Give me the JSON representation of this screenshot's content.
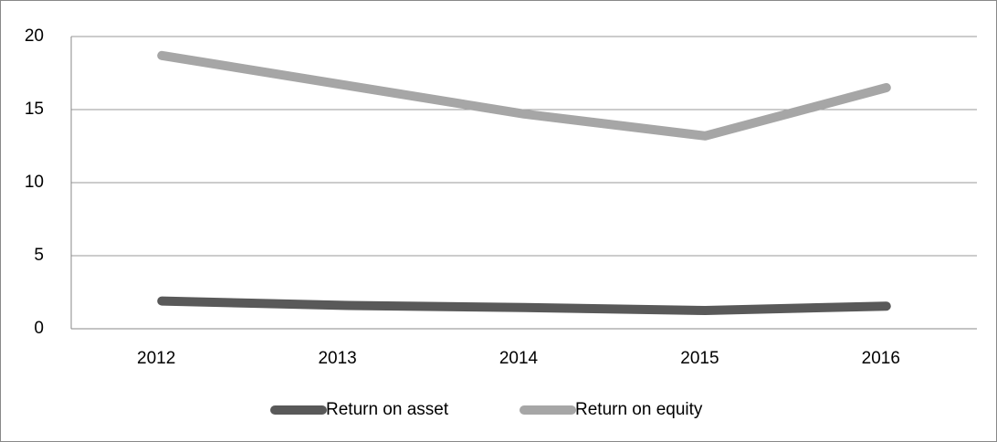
{
  "chart_data": {
    "type": "line",
    "categories": [
      "2012",
      "2013",
      "2014",
      "2015",
      "2016"
    ],
    "series": [
      {
        "name": "Return on asset",
        "color": "#595959",
        "values": [
          1.9,
          1.6,
          1.45,
          1.25,
          1.55
        ]
      },
      {
        "name": "Return on equity",
        "color": "#a6a6a6",
        "values": [
          18.7,
          16.7,
          14.7,
          13.2,
          16.5
        ]
      }
    ],
    "ylim": [
      0,
      20
    ],
    "yticks": [
      0,
      5,
      10,
      15,
      20
    ],
    "grid": true,
    "legend": "bottom"
  }
}
